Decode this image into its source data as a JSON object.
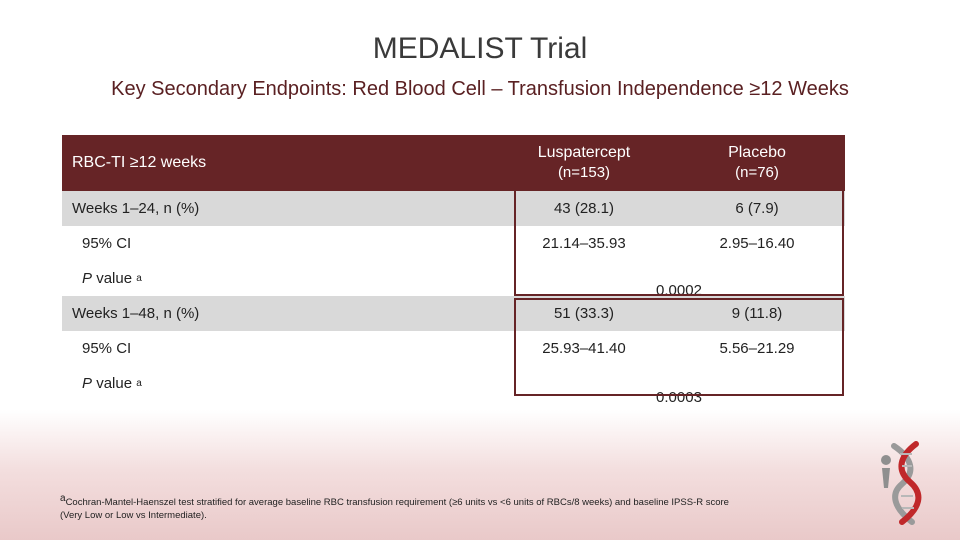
{
  "slide": {
    "title": "MEDALIST Trial",
    "subtitle": "Key Secondary Endpoints: Red Blood Cell – Transfusion Independence ≥12 Weeks"
  },
  "table": {
    "header": {
      "label": "RBC-TI ≥12 weeks",
      "luspatercept_name": "Luspatercept",
      "luspatercept_n": "(n=153)",
      "placebo_name": "Placebo",
      "placebo_n": "(n=76)"
    },
    "weeks_24": {
      "label": "Weeks 1–24, n (%)",
      "luspatercept": "43 (28.1)",
      "placebo": "6 (7.9)",
      "ci_label": "95% CI",
      "ci_luspatercept": "21.14–35.93",
      "ci_placebo": "2.95–16.40",
      "p_label": "P",
      "p_suffix": "value",
      "p_marker": "a",
      "p_value": "0.0002"
    },
    "weeks_48": {
      "label": "Weeks 1–48, n (%)",
      "luspatercept": "51 (33.3)",
      "placebo": "9 (11.8)",
      "ci_label": "95% CI",
      "ci_luspatercept": "25.93–41.40",
      "ci_placebo": "5.56–21.29",
      "p_label": "P",
      "p_suffix": "value",
      "p_marker": "a",
      "p_value": "0.0003"
    }
  },
  "footnote": {
    "marker": "a",
    "line1": "Cochran-Mantel-Haenszel test stratified for average baseline RBC transfusion requirement (≥6 units vs <6 units of RBCs/8 weeks) and baseline IPSS-R score",
    "line2": "(Very Low or Low vs Intermediate)."
  },
  "colors": {
    "header_bg": "#662426",
    "shade_bg": "#d9d9d9",
    "subtitle": "#5a2022"
  },
  "logo": {
    "icon": "dna-helix-figure-icon"
  }
}
